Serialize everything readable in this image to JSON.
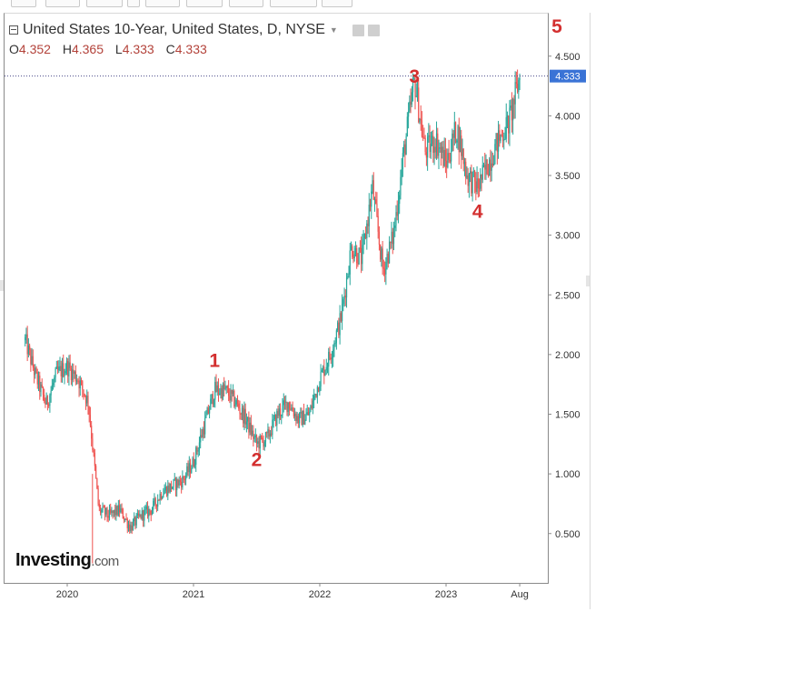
{
  "header": {
    "title": "United States 10-Year, United States, D, NYSE",
    "ohlc": [
      {
        "label": "O",
        "value": "4.352"
      },
      {
        "label": "H",
        "value": "4.365"
      },
      {
        "label": "L",
        "value": "4.333"
      },
      {
        "label": "C",
        "value": "4.333"
      }
    ]
  },
  "logo": {
    "name": "Investing",
    "suffix": ".com"
  },
  "last_price_label": "4.333",
  "colors": {
    "up": "#26a69a",
    "down": "#ef5350",
    "annotation": "#d32f2f",
    "price_tag": "#3a73d6"
  },
  "icons": [
    "collapse-icon",
    "chevron-down-icon",
    "eye-icon",
    "gear-icon"
  ],
  "chart_data": {
    "type": "candlestick",
    "title": "United States 10-Year, United States, D, NYSE",
    "y_ticks": [
      "0.500",
      "1.000",
      "1.500",
      "2.000",
      "2.500",
      "3.000",
      "3.500",
      "4.000",
      "4.500"
    ],
    "x_ticks": [
      "2020",
      "2021",
      "2022",
      "2023",
      "Aug"
    ],
    "ylim": [
      0.1,
      4.8
    ],
    "last_value": 4.333,
    "annotations": [
      {
        "label": "1",
        "x": "2021-03",
        "y": 1.95
      },
      {
        "label": "2",
        "x": "2021-07",
        "y": 1.12
      },
      {
        "label": "3",
        "x": "2022-10",
        "y": 4.33
      },
      {
        "label": "4",
        "x": "2023-04",
        "y": 3.2
      },
      {
        "label": "5",
        "x": "2023-08",
        "y": 4.75
      }
    ],
    "series": [
      {
        "x": [
          "2019-09",
          "2019-10",
          "2019-11",
          "2019-12",
          "2020-01",
          "2020-02",
          "2020-03",
          "2020-04",
          "2020-05",
          "2020-06",
          "2020-07",
          "2020-08",
          "2020-09",
          "2020-10",
          "2020-11",
          "2020-12",
          "2021-01",
          "2021-02",
          "2021-03",
          "2021-04",
          "2021-05",
          "2021-06",
          "2021-07",
          "2021-08",
          "2021-09",
          "2021-10",
          "2021-11",
          "2021-12",
          "2022-01",
          "2022-02",
          "2022-03",
          "2022-04",
          "2022-05",
          "2022-06",
          "2022-07",
          "2022-08",
          "2022-09",
          "2022-10",
          "2022-11",
          "2022-12",
          "2023-01",
          "2023-02",
          "2023-03",
          "2023-04",
          "2023-05",
          "2023-06",
          "2023-07",
          "2023-08"
        ],
        "values": [
          2.12,
          1.82,
          1.58,
          1.84,
          1.9,
          1.8,
          1.6,
          0.7,
          0.65,
          0.7,
          0.55,
          0.65,
          0.7,
          0.85,
          0.9,
          0.95,
          1.1,
          1.4,
          1.7,
          1.7,
          1.6,
          1.45,
          1.25,
          1.3,
          1.5,
          1.6,
          1.45,
          1.5,
          1.8,
          2.0,
          2.3,
          2.9,
          2.8,
          3.4,
          2.7,
          3.0,
          3.7,
          4.3,
          3.7,
          3.8,
          3.6,
          3.9,
          3.5,
          3.4,
          3.6,
          3.8,
          3.95,
          4.33
        ]
      }
    ]
  }
}
